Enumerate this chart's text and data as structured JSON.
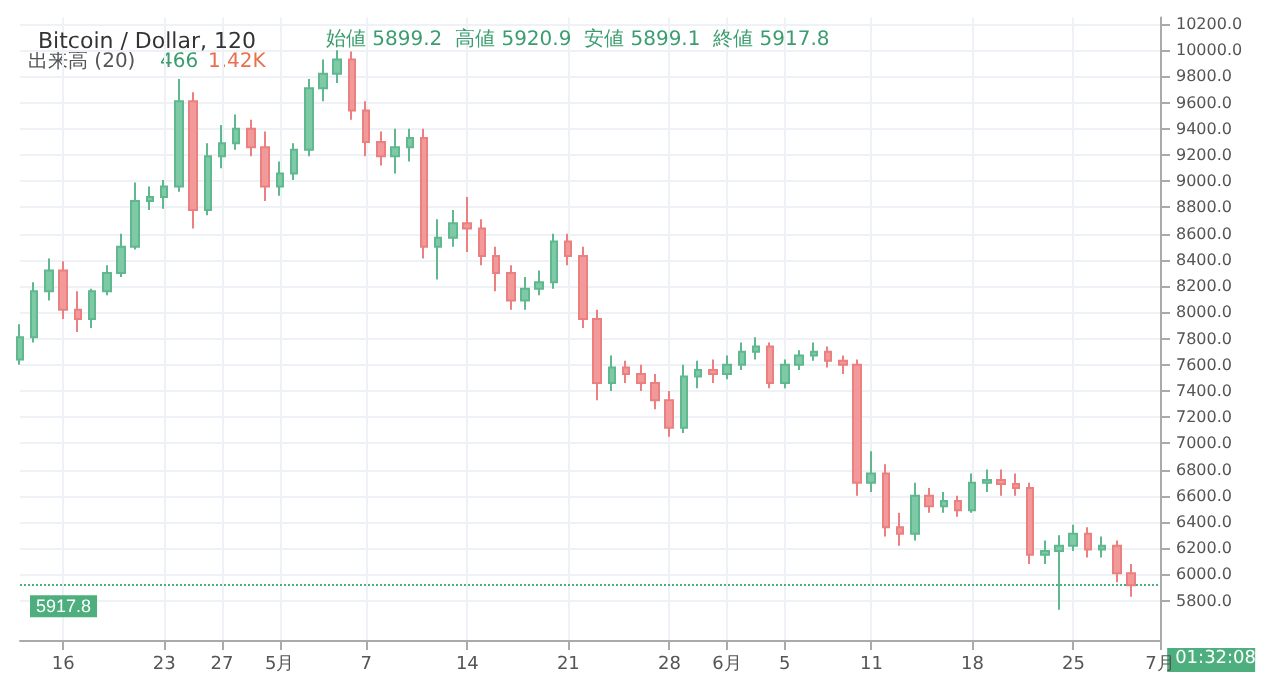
{
  "chart_data": {
    "type": "candlestick",
    "title": "Bitcoin / Dollar, 120",
    "subtitle": "始値 5899.2  高値 5920.9  安値 5899.1  終値 5917.8",
    "annotations": [
      "出来高 (20)",
      "466",
      "1.42K",
      "01:32:08"
    ],
    "x": [
      "--04-13",
      "--04-14",
      "--04-15",
      "--04-16",
      "--04-17",
      "--04-18",
      "--04-19",
      "--04-20",
      "--04-21",
      "--04-22",
      "--04-23",
      "--04-24",
      "--04-25",
      "--04-26",
      "--04-27",
      "--04-28",
      "--04-29",
      "--04-30",
      "--05-01",
      "--05-02",
      "--05-03",
      "--05-04",
      "--05-05",
      "--05-06",
      "--05-07",
      "--05-08",
      "--05-09",
      "--05-10",
      "--05-11",
      "--05-12",
      "--05-13",
      "--05-14",
      "--05-15",
      "--05-16",
      "--05-17",
      "--05-18",
      "--05-19",
      "--05-20",
      "--05-21",
      "--05-22",
      "--05-23",
      "--05-24",
      "--05-25",
      "--05-26",
      "--05-27",
      "--05-28",
      "--05-29",
      "--05-30",
      "--05-31",
      "--06-01",
      "--06-02",
      "--06-03",
      "--06-04",
      "--06-05",
      "--06-06",
      "--06-07",
      "--06-08",
      "--06-09",
      "--06-10",
      "--06-11",
      "--06-12",
      "--06-13",
      "--06-14",
      "--06-15",
      "--06-16",
      "--06-17",
      "--06-18",
      "--06-19",
      "--06-20",
      "--06-21",
      "--06-22",
      "--06-23",
      "--06-24",
      "--06-25",
      "--06-26",
      "--06-27",
      "--06-28",
      "--06-29"
    ],
    "ohlc": [
      [
        7640,
        7910,
        7600,
        7810
      ],
      [
        7810,
        8230,
        7770,
        8160
      ],
      [
        8160,
        8410,
        8090,
        8320
      ],
      [
        8320,
        8390,
        7950,
        8020
      ],
      [
        8020,
        8160,
        7850,
        7950
      ],
      [
        7950,
        8180,
        7880,
        8160
      ],
      [
        8160,
        8360,
        8130,
        8300
      ],
      [
        8300,
        8600,
        8270,
        8500
      ],
      [
        8500,
        8990,
        8480,
        8850
      ],
      [
        8850,
        8960,
        8780,
        8880
      ],
      [
        8880,
        9010,
        8790,
        8960
      ],
      [
        8960,
        9780,
        8920,
        9610
      ],
      [
        9610,
        9680,
        8640,
        8780
      ],
      [
        8780,
        9290,
        8740,
        9190
      ],
      [
        9190,
        9430,
        9100,
        9290
      ],
      [
        9290,
        9510,
        9240,
        9400
      ],
      [
        9400,
        9470,
        9190,
        9260
      ],
      [
        9260,
        9380,
        8850,
        8960
      ],
      [
        8960,
        9150,
        8890,
        9060
      ],
      [
        9060,
        9290,
        9010,
        9240
      ],
      [
        9240,
        9780,
        9190,
        9710
      ],
      [
        9710,
        9930,
        9610,
        9820
      ],
      [
        9820,
        10000,
        9750,
        9930
      ],
      [
        9930,
        9990,
        9470,
        9540
      ],
      [
        9540,
        9610,
        9190,
        9300
      ],
      [
        9300,
        9380,
        9120,
        9190
      ],
      [
        9190,
        9400,
        9060,
        9260
      ],
      [
        9260,
        9400,
        9150,
        9330
      ],
      [
        9330,
        9400,
        8410,
        8500
      ],
      [
        8500,
        8710,
        8250,
        8570
      ],
      [
        8570,
        8780,
        8500,
        8680
      ],
      [
        8680,
        8880,
        8460,
        8640
      ],
      [
        8640,
        8710,
        8360,
        8430
      ],
      [
        8430,
        8500,
        8160,
        8300
      ],
      [
        8300,
        8360,
        8020,
        8090
      ],
      [
        8090,
        8270,
        8020,
        8180
      ],
      [
        8180,
        8320,
        8130,
        8230
      ],
      [
        8230,
        8600,
        8180,
        8540
      ],
      [
        8540,
        8600,
        8360,
        8430
      ],
      [
        8430,
        8500,
        7880,
        7950
      ],
      [
        7950,
        8020,
        7330,
        7460
      ],
      [
        7460,
        7670,
        7400,
        7580
      ],
      [
        7580,
        7630,
        7460,
        7530
      ],
      [
        7530,
        7600,
        7400,
        7460
      ],
      [
        7460,
        7530,
        7260,
        7330
      ],
      [
        7330,
        7400,
        7050,
        7120
      ],
      [
        7120,
        7600,
        7080,
        7510
      ],
      [
        7510,
        7630,
        7420,
        7560
      ],
      [
        7560,
        7640,
        7460,
        7530
      ],
      [
        7530,
        7670,
        7490,
        7600
      ],
      [
        7600,
        7770,
        7560,
        7700
      ],
      [
        7700,
        7810,
        7640,
        7740
      ],
      [
        7740,
        7770,
        7420,
        7460
      ],
      [
        7460,
        7640,
        7420,
        7600
      ],
      [
        7600,
        7710,
        7560,
        7670
      ],
      [
        7670,
        7770,
        7630,
        7700
      ],
      [
        7700,
        7740,
        7580,
        7630
      ],
      [
        7630,
        7670,
        7530,
        7600
      ],
      [
        7600,
        7640,
        6600,
        6700
      ],
      [
        6700,
        6940,
        6630,
        6770
      ],
      [
        6770,
        6840,
        6290,
        6360
      ],
      [
        6360,
        6470,
        6220,
        6310
      ],
      [
        6310,
        6700,
        6260,
        6600
      ],
      [
        6600,
        6660,
        6470,
        6520
      ],
      [
        6520,
        6630,
        6470,
        6560
      ],
      [
        6560,
        6600,
        6440,
        6490
      ],
      [
        6490,
        6770,
        6470,
        6700
      ],
      [
        6700,
        6800,
        6630,
        6720
      ],
      [
        6720,
        6800,
        6600,
        6690
      ],
      [
        6690,
        6770,
        6600,
        6660
      ],
      [
        6660,
        6700,
        6080,
        6150
      ],
      [
        6150,
        6260,
        6080,
        6180
      ],
      [
        6180,
        6300,
        5730,
        6220
      ],
      [
        6220,
        6380,
        6180,
        6310
      ],
      [
        6310,
        6360,
        6130,
        6190
      ],
      [
        6190,
        6290,
        6130,
        6220
      ],
      [
        6220,
        6260,
        5940,
        6010
      ],
      [
        6010,
        6080,
        5830,
        5918
      ]
    ],
    "xlim": [
      "--04-13",
      "--07-01"
    ],
    "xticks": [
      {
        "value": "--04-16",
        "label": "16"
      },
      {
        "value": "--04-23",
        "label": "23"
      },
      {
        "value": "--04-27",
        "label": "27"
      },
      {
        "value": "--05-01",
        "label": "5月"
      },
      {
        "value": "--05-07",
        "label": "7"
      },
      {
        "value": "--05-14",
        "label": "14"
      },
      {
        "value": "--05-21",
        "label": "21"
      },
      {
        "value": "--05-28",
        "label": "28"
      },
      {
        "value": "--06-01",
        "label": "6月"
      },
      {
        "value": "--06-05",
        "label": "5"
      },
      {
        "value": "--06-11",
        "label": "11"
      },
      {
        "value": "--06-18",
        "label": "18"
      },
      {
        "value": "--06-25",
        "label": "25"
      },
      {
        "value": "--07-01",
        "label": "7月"
      }
    ],
    "ylim": [
      5500,
      10250
    ],
    "yticks": [
      {
        "value": 5800,
        "label": "5800.0"
      },
      {
        "value": 6000,
        "label": "6000.0"
      },
      {
        "value": 6200,
        "label": "6200.0"
      },
      {
        "value": 6400,
        "label": "6400.0"
      },
      {
        "value": 6600,
        "label": "6600.0"
      },
      {
        "value": 6800,
        "label": "6800.0"
      },
      {
        "value": 7000,
        "label": "7000.0"
      },
      {
        "value": 7200,
        "label": "7200.0"
      },
      {
        "value": 7400,
        "label": "7400.0"
      },
      {
        "value": 7600,
        "label": "7600.0"
      },
      {
        "value": 7800,
        "label": "7800.0"
      },
      {
        "value": 8000,
        "label": "8000.0"
      },
      {
        "value": 8200,
        "label": "8200.0"
      },
      {
        "value": 8400,
        "label": "8400.0"
      },
      {
        "value": 8600,
        "label": "8600.0"
      },
      {
        "value": 8800,
        "label": "8800.0"
      },
      {
        "value": 9000,
        "label": "9000.0"
      },
      {
        "value": 9200,
        "label": "9200.0"
      },
      {
        "value": 9400,
        "label": "9400.0"
      },
      {
        "value": 9600,
        "label": "9600.0"
      },
      {
        "value": 9800,
        "label": "9800.0"
      },
      {
        "value": 10000,
        "label": "10000.0"
      },
      {
        "value": 10200,
        "label": "10200.0"
      }
    ],
    "ref_lines": [
      {
        "axis": "y",
        "value": 5917.8,
        "label": "5917.8",
        "color": "#4caf7d"
      }
    ],
    "grid": true
  }
}
